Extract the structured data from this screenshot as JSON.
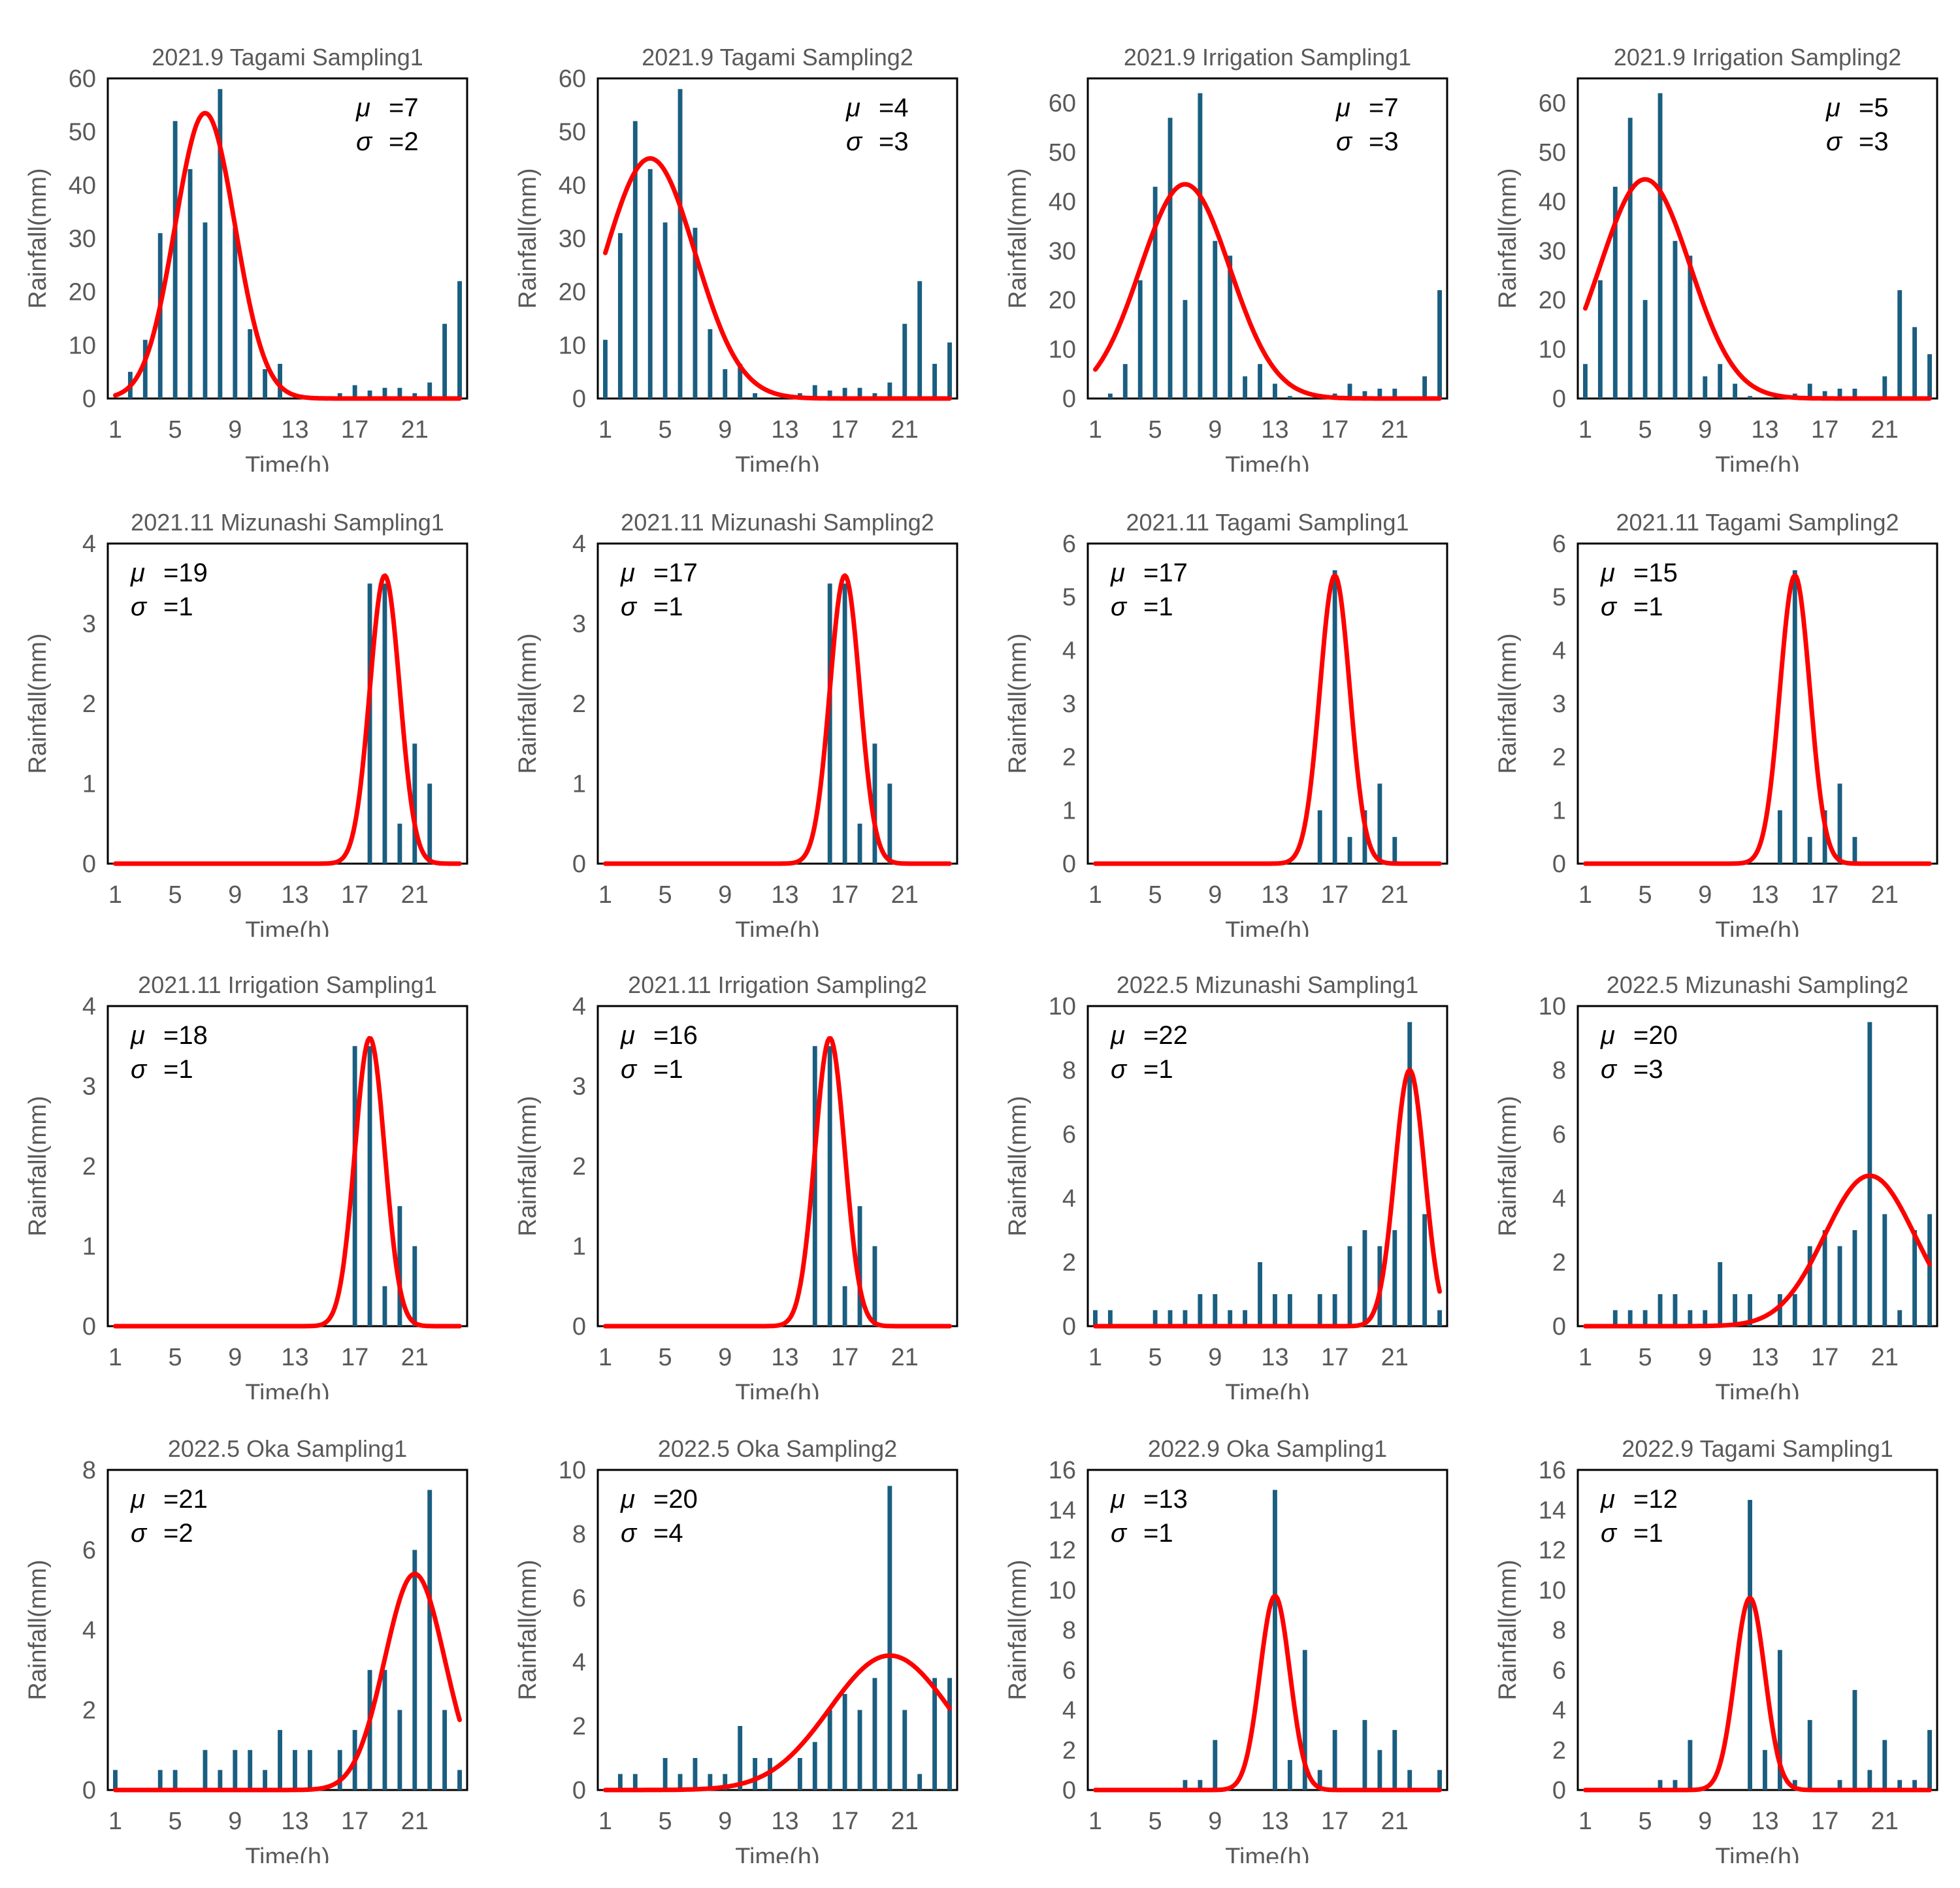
{
  "figure": {
    "bar_color": "#1a5e80",
    "curve_color": "#ff0000",
    "xlabel": "Time(h)",
    "ylabel": "Rainfall(mm)",
    "x_ticks": [
      1,
      5,
      9,
      13,
      17,
      21
    ],
    "mu_label": "μ",
    "sigma_label": "σ"
  },
  "chart_data": [
    {
      "type": "bar",
      "title": "2021.9 Tagami Sampling1",
      "xlabel": "Time(h)",
      "ylabel": "Rainfall(mm)",
      "x": [
        1,
        2,
        3,
        4,
        5,
        6,
        7,
        8,
        9,
        10,
        11,
        12,
        13,
        14,
        15,
        16,
        17,
        18,
        19,
        20,
        21,
        22,
        23,
        24
      ],
      "values": [
        0,
        5,
        11,
        31,
        52,
        43,
        33,
        58,
        32,
        13,
        5.5,
        6.5,
        0,
        0,
        0,
        1,
        2.5,
        1.5,
        2,
        2,
        1,
        3,
        14,
        22
      ],
      "yticks": [
        0,
        10,
        20,
        30,
        40,
        50,
        60
      ],
      "ylim": [
        0,
        60
      ],
      "fit": {
        "type": "line",
        "name": "normal fit",
        "mu": 7,
        "sigma": 2,
        "peak": 53.5
      },
      "annotation": {
        "mu": "=7",
        "sigma": "=2",
        "position": "top-right"
      }
    },
    {
      "type": "bar",
      "title": "2021.9 Tagami Sampling2",
      "xlabel": "Time(h)",
      "ylabel": "Rainfall(mm)",
      "x": [
        1,
        2,
        3,
        4,
        5,
        6,
        7,
        8,
        9,
        10,
        11,
        12,
        13,
        14,
        15,
        16,
        17,
        18,
        19,
        20,
        21,
        22,
        23,
        24
      ],
      "values": [
        11,
        31,
        52,
        43,
        33,
        58,
        32,
        13,
        5.5,
        6.5,
        1,
        0,
        0,
        1,
        2.5,
        1.5,
        2,
        2,
        1,
        3,
        14,
        22,
        6.5,
        10.5
      ],
      "yticks": [
        0,
        10,
        20,
        30,
        40,
        50,
        60
      ],
      "ylim": [
        0,
        60
      ],
      "fit": {
        "type": "line",
        "name": "normal fit",
        "mu": 4,
        "sigma": 3,
        "peak": 45
      },
      "annotation": {
        "mu": "=4",
        "sigma": "=3",
        "position": "top-right"
      }
    },
    {
      "type": "bar",
      "title": "2021.9 Irrigation Sampling1",
      "xlabel": "Time(h)",
      "ylabel": "Rainfall(mm)",
      "x": [
        1,
        2,
        3,
        4,
        5,
        6,
        7,
        8,
        9,
        10,
        11,
        12,
        13,
        14,
        15,
        16,
        17,
        18,
        19,
        20,
        21,
        22,
        23,
        24
      ],
      "values": [
        0,
        1,
        7,
        24,
        43,
        57,
        20,
        62,
        32,
        29,
        4.5,
        7,
        3,
        0.5,
        0,
        0,
        1,
        3,
        1.5,
        2,
        2,
        0,
        4.5,
        22
      ],
      "yticks": [
        0,
        10,
        20,
        30,
        40,
        50,
        60
      ],
      "ylim": [
        0,
        65
      ],
      "fit": {
        "type": "line",
        "name": "normal fit",
        "mu": 7,
        "sigma": 3,
        "peak": 43.5
      },
      "annotation": {
        "mu": "=7",
        "sigma": "=3",
        "position": "top-right"
      }
    },
    {
      "type": "bar",
      "title": "2021.9 Irrigation Sampling2",
      "xlabel": "Time(h)",
      "ylabel": "Rainfall(mm)",
      "x": [
        1,
        2,
        3,
        4,
        5,
        6,
        7,
        8,
        9,
        10,
        11,
        12,
        13,
        14,
        15,
        16,
        17,
        18,
        19,
        20,
        21,
        22,
        23,
        24
      ],
      "values": [
        7,
        24,
        43,
        57,
        20,
        62,
        32,
        29,
        4.5,
        7,
        3,
        0.5,
        0,
        0,
        1,
        3,
        1.5,
        2,
        2,
        0,
        4.5,
        22,
        14.5,
        9
      ],
      "yticks": [
        0,
        10,
        20,
        30,
        40,
        50,
        60
      ],
      "ylim": [
        0,
        65
      ],
      "fit": {
        "type": "line",
        "name": "normal fit",
        "mu": 5,
        "sigma": 3,
        "peak": 44.5
      },
      "annotation": {
        "mu": "=5",
        "sigma": "=3",
        "position": "top-right"
      }
    },
    {
      "type": "bar",
      "title": "2021.11 Mizunashi Sampling1",
      "xlabel": "Time(h)",
      "ylabel": "Rainfall(mm)",
      "x": [
        1,
        2,
        3,
        4,
        5,
        6,
        7,
        8,
        9,
        10,
        11,
        12,
        13,
        14,
        15,
        16,
        17,
        18,
        19,
        20,
        21,
        22,
        23,
        24
      ],
      "values": [
        0,
        0,
        0,
        0,
        0,
        0,
        0,
        0,
        0,
        0,
        0,
        0,
        0,
        0,
        0,
        0,
        0,
        3.5,
        3.5,
        0.5,
        1.5,
        1,
        0,
        0
      ],
      "yticks": [
        0,
        1,
        2,
        3,
        4
      ],
      "ylim": [
        0,
        4
      ],
      "fit": {
        "type": "line",
        "name": "normal fit",
        "mu": 19,
        "sigma": 1,
        "peak": 3.6
      },
      "annotation": {
        "mu": "=19",
        "sigma": "=1",
        "position": "top-left"
      }
    },
    {
      "type": "bar",
      "title": "2021.11 Mizunashi Sampling2",
      "xlabel": "Time(h)",
      "ylabel": "Rainfall(mm)",
      "x": [
        1,
        2,
        3,
        4,
        5,
        6,
        7,
        8,
        9,
        10,
        11,
        12,
        13,
        14,
        15,
        16,
        17,
        18,
        19,
        20,
        21,
        22,
        23,
        24
      ],
      "values": [
        0,
        0,
        0,
        0,
        0,
        0,
        0,
        0,
        0,
        0,
        0,
        0,
        0,
        0,
        0,
        3.5,
        3.5,
        0.5,
        1.5,
        1,
        0,
        0,
        0,
        0
      ],
      "yticks": [
        0,
        1,
        2,
        3,
        4
      ],
      "ylim": [
        0,
        4
      ],
      "fit": {
        "type": "line",
        "name": "normal fit",
        "mu": 17,
        "sigma": 1,
        "peak": 3.6
      },
      "annotation": {
        "mu": "=17",
        "sigma": "=1",
        "position": "top-left"
      }
    },
    {
      "type": "bar",
      "title": "2021.11 Tagami Sampling1",
      "xlabel": "Time(h)",
      "ylabel": "Rainfall(mm)",
      "x": [
        1,
        2,
        3,
        4,
        5,
        6,
        7,
        8,
        9,
        10,
        11,
        12,
        13,
        14,
        15,
        16,
        17,
        18,
        19,
        20,
        21,
        22,
        23,
        24
      ],
      "values": [
        0,
        0,
        0,
        0,
        0,
        0,
        0,
        0,
        0,
        0,
        0,
        0,
        0,
        0,
        0,
        1,
        5.5,
        0.5,
        1,
        1.5,
        0.5,
        0,
        0,
        0
      ],
      "yticks": [
        0,
        1,
        2,
        3,
        4,
        5,
        6
      ],
      "ylim": [
        0,
        6
      ],
      "fit": {
        "type": "line",
        "name": "normal fit",
        "mu": 17,
        "sigma": 1,
        "peak": 5.4
      },
      "annotation": {
        "mu": "=17",
        "sigma": "=1",
        "position": "top-left"
      }
    },
    {
      "type": "bar",
      "title": "2021.11 Tagami Sampling2",
      "xlabel": "Time(h)",
      "ylabel": "Rainfall(mm)",
      "x": [
        1,
        2,
        3,
        4,
        5,
        6,
        7,
        8,
        9,
        10,
        11,
        12,
        13,
        14,
        15,
        16,
        17,
        18,
        19,
        20,
        21,
        22,
        23,
        24
      ],
      "values": [
        0,
        0,
        0,
        0,
        0,
        0,
        0,
        0,
        0,
        0,
        0,
        0,
        0,
        1,
        5.5,
        0.5,
        1,
        1.5,
        0.5,
        0,
        0,
        0,
        0,
        0
      ],
      "yticks": [
        0,
        1,
        2,
        3,
        4,
        5,
        6
      ],
      "ylim": [
        0,
        6
      ],
      "fit": {
        "type": "line",
        "name": "normal fit",
        "mu": 15,
        "sigma": 1,
        "peak": 5.4
      },
      "annotation": {
        "mu": "=15",
        "sigma": "=1",
        "position": "top-left"
      }
    },
    {
      "type": "bar",
      "title": "2021.11 Irrigation Sampling1",
      "xlabel": "Time(h)",
      "ylabel": "Rainfall(mm)",
      "x": [
        1,
        2,
        3,
        4,
        5,
        6,
        7,
        8,
        9,
        10,
        11,
        12,
        13,
        14,
        15,
        16,
        17,
        18,
        19,
        20,
        21,
        22,
        23,
        24
      ],
      "values": [
        0,
        0,
        0,
        0,
        0,
        0,
        0,
        0,
        0,
        0,
        0,
        0,
        0,
        0,
        0,
        0,
        3.5,
        3.5,
        0.5,
        1.5,
        1,
        0,
        0,
        0
      ],
      "yticks": [
        0,
        1,
        2,
        3,
        4
      ],
      "ylim": [
        0,
        4
      ],
      "fit": {
        "type": "line",
        "name": "normal fit",
        "mu": 18,
        "sigma": 1,
        "peak": 3.6
      },
      "annotation": {
        "mu": "=18",
        "sigma": "=1",
        "position": "top-left"
      }
    },
    {
      "type": "bar",
      "title": "2021.11 Irrigation Sampling2",
      "xlabel": "Time(h)",
      "ylabel": "Rainfall(mm)",
      "x": [
        1,
        2,
        3,
        4,
        5,
        6,
        7,
        8,
        9,
        10,
        11,
        12,
        13,
        14,
        15,
        16,
        17,
        18,
        19,
        20,
        21,
        22,
        23,
        24
      ],
      "values": [
        0,
        0,
        0,
        0,
        0,
        0,
        0,
        0,
        0,
        0,
        0,
        0,
        0,
        0,
        3.5,
        3.5,
        0.5,
        1.5,
        1,
        0,
        0,
        0,
        0,
        0
      ],
      "yticks": [
        0,
        1,
        2,
        3,
        4
      ],
      "ylim": [
        0,
        4
      ],
      "fit": {
        "type": "line",
        "name": "normal fit",
        "mu": 16,
        "sigma": 1,
        "peak": 3.6
      },
      "annotation": {
        "mu": "=16",
        "sigma": "=1",
        "position": "top-left"
      }
    },
    {
      "type": "bar",
      "title": "2022.5 Mizunashi Sampling1",
      "xlabel": "Time(h)",
      "ylabel": "Rainfall(mm)",
      "x": [
        1,
        2,
        3,
        4,
        5,
        6,
        7,
        8,
        9,
        10,
        11,
        12,
        13,
        14,
        15,
        16,
        17,
        18,
        19,
        20,
        21,
        22,
        23,
        24
      ],
      "values": [
        0.5,
        0.5,
        0,
        0,
        0.5,
        0.5,
        0.5,
        1,
        1,
        0.5,
        0.5,
        2,
        1,
        1,
        0,
        1,
        1,
        2.5,
        3,
        2.5,
        3,
        9.5,
        3.5,
        0.5
      ],
      "yticks": [
        0,
        2,
        4,
        6,
        8,
        10
      ],
      "ylim": [
        0,
        10
      ],
      "fit": {
        "type": "line",
        "name": "normal fit",
        "mu": 22,
        "sigma": 1,
        "peak": 8
      },
      "annotation": {
        "mu": "=22",
        "sigma": "=1",
        "position": "top-left"
      }
    },
    {
      "type": "bar",
      "title": "2022.5 Mizunashi Sampling2",
      "xlabel": "Time(h)",
      "ylabel": "Rainfall(mm)",
      "x": [
        1,
        2,
        3,
        4,
        5,
        6,
        7,
        8,
        9,
        10,
        11,
        12,
        13,
        14,
        15,
        16,
        17,
        18,
        19,
        20,
        21,
        22,
        23,
        24
      ],
      "values": [
        0,
        0,
        0.5,
        0.5,
        0.5,
        1,
        1,
        0.5,
        0.5,
        2,
        1,
        1,
        0,
        1,
        1,
        2.5,
        3,
        2.5,
        3,
        9.5,
        3.5,
        0.5,
        3,
        3.5
      ],
      "yticks": [
        0,
        2,
        4,
        6,
        8,
        10
      ],
      "ylim": [
        0,
        10
      ],
      "fit": {
        "type": "line",
        "name": "normal fit",
        "mu": 20,
        "sigma": 3,
        "peak": 4.7
      },
      "annotation": {
        "mu": "=20",
        "sigma": "=3",
        "position": "top-left"
      }
    },
    {
      "type": "bar",
      "title": "2022.5 Oka Sampling1",
      "xlabel": "Time(h)",
      "ylabel": "Rainfall(mm)",
      "x": [
        1,
        2,
        3,
        4,
        5,
        6,
        7,
        8,
        9,
        10,
        11,
        12,
        13,
        14,
        15,
        16,
        17,
        18,
        19,
        20,
        21,
        22,
        23,
        24
      ],
      "values": [
        0.5,
        0,
        0,
        0.5,
        0.5,
        0,
        1,
        0.5,
        1,
        1,
        0.5,
        1.5,
        1,
        1,
        0,
        1,
        1.5,
        3,
        3,
        2,
        6,
        7.5,
        2,
        0.5
      ],
      "yticks": [
        0,
        2,
        4,
        6,
        8
      ],
      "ylim": [
        0,
        8
      ],
      "fit": {
        "type": "line",
        "name": "normal fit",
        "mu": 21,
        "sigma": 2,
        "peak": 5.4
      },
      "annotation": {
        "mu": "=21",
        "sigma": "=2",
        "position": "top-left"
      }
    },
    {
      "type": "bar",
      "title": "2022.5 Oka Sampling2",
      "xlabel": "Time(h)",
      "ylabel": "Rainfall(mm)",
      "x": [
        1,
        2,
        3,
        4,
        5,
        6,
        7,
        8,
        9,
        10,
        11,
        12,
        13,
        14,
        15,
        16,
        17,
        18,
        19,
        20,
        21,
        22,
        23,
        24
      ],
      "values": [
        0,
        0.5,
        0.5,
        0,
        1,
        0.5,
        1,
        0.5,
        0.5,
        2,
        1,
        1,
        0,
        1,
        1.5,
        2.5,
        3,
        2.5,
        3.5,
        9.5,
        2.5,
        0.5,
        3.5,
        3.5
      ],
      "yticks": [
        0,
        2,
        4,
        6,
        8,
        10
      ],
      "ylim": [
        0,
        10
      ],
      "fit": {
        "type": "line",
        "name": "normal fit",
        "mu": 20,
        "sigma": 4,
        "peak": 4.2
      },
      "annotation": {
        "mu": "=20",
        "sigma": "=4",
        "position": "top-left"
      }
    },
    {
      "type": "bar",
      "title": "2022.9 Oka Sampling1",
      "xlabel": "Time(h)",
      "ylabel": "Rainfall(mm)",
      "x": [
        1,
        2,
        3,
        4,
        5,
        6,
        7,
        8,
        9,
        10,
        11,
        12,
        13,
        14,
        15,
        16,
        17,
        18,
        19,
        20,
        21,
        22,
        23,
        24
      ],
      "values": [
        0,
        0,
        0,
        0,
        0,
        0,
        0.5,
        0.5,
        2.5,
        0,
        0,
        0,
        15,
        1.5,
        7,
        1,
        3,
        0,
        3.5,
        2,
        3,
        1,
        0,
        1
      ],
      "yticks": [
        0,
        2,
        4,
        6,
        8,
        10,
        12,
        14,
        16
      ],
      "ylim": [
        0,
        16
      ],
      "fit": {
        "type": "line",
        "name": "normal fit",
        "mu": 13,
        "sigma": 1,
        "peak": 9.7
      },
      "annotation": {
        "mu": "=13",
        "sigma": "=1",
        "position": "top-left"
      }
    },
    {
      "type": "bar",
      "title": "2022.9 Tagami Sampling1",
      "xlabel": "Time(h)",
      "ylabel": "Rainfall(mm)",
      "x": [
        1,
        2,
        3,
        4,
        5,
        6,
        7,
        8,
        9,
        10,
        11,
        12,
        13,
        14,
        15,
        16,
        17,
        18,
        19,
        20,
        21,
        22,
        23,
        24
      ],
      "values": [
        0,
        0,
        0,
        0,
        0,
        0.5,
        0.5,
        2.5,
        0,
        0,
        0,
        14.5,
        2,
        7,
        0.5,
        3.5,
        0,
        0.5,
        5,
        1,
        2.5,
        0.5,
        0.5,
        3
      ],
      "yticks": [
        0,
        2,
        4,
        6,
        8,
        10,
        12,
        14,
        16
      ],
      "ylim": [
        0,
        16
      ],
      "fit": {
        "type": "line",
        "name": "normal fit",
        "mu": 12,
        "sigma": 1,
        "peak": 9.6
      },
      "annotation": {
        "mu": "=12",
        "sigma": "=1",
        "position": "top-left"
      }
    }
  ]
}
